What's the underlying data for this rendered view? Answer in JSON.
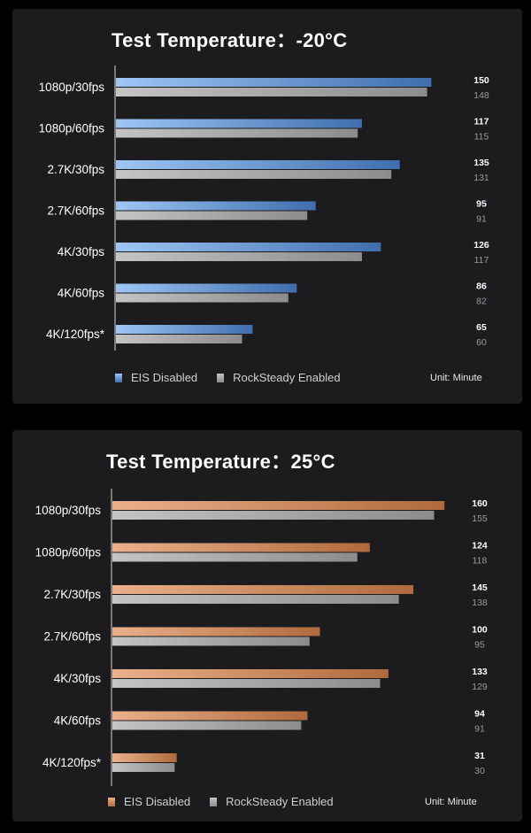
{
  "colors": {
    "background": "#000000",
    "panel": "#1c1c1e",
    "blue_light": "#9ec6f5",
    "blue_dark": "#3f6eae",
    "orange_light": "#eab08b",
    "orange_dark": "#b06a3c",
    "gray_light": "#c4c4c4",
    "gray_dark": "#8c8c8c"
  },
  "chart_data": [
    {
      "type": "bar",
      "orientation": "horizontal",
      "title": "Test Temperature：-20°C",
      "categories": [
        "1080p/30fps",
        "1080p/60fps",
        "2.7K/30fps",
        "2.7K/60fps",
        "4K/30fps",
        "4K/60fps",
        "4K/120fps*"
      ],
      "series": [
        {
          "name": "EIS Disabled",
          "values": [
            150,
            117,
            135,
            95,
            126,
            86,
            65
          ],
          "color": "#5b8fd3"
        },
        {
          "name": "RockSteady Enabled",
          "values": [
            148,
            115,
            131,
            91,
            117,
            82,
            60
          ],
          "color": "#a8a8a8"
        }
      ],
      "unit_label": "Unit: Minute",
      "legend": "bottom",
      "xlim": [
        0,
        165
      ],
      "grid": false
    },
    {
      "type": "bar",
      "orientation": "horizontal",
      "title": "Test Temperature：25°C",
      "categories": [
        "1080p/30fps",
        "1080p/60fps",
        "2.7K/30fps",
        "2.7K/60fps",
        "4K/30fps",
        "4K/60fps",
        "4K/120fps*"
      ],
      "series": [
        {
          "name": "EIS Disabled",
          "values": [
            160,
            124,
            145,
            100,
            133,
            94,
            31
          ],
          "color": "#d08d5f"
        },
        {
          "name": "RockSteady Enabled",
          "values": [
            155,
            118,
            138,
            95,
            129,
            91,
            30
          ],
          "color": "#a8a8a8"
        }
      ],
      "unit_label": "Unit: Minute",
      "legend": "bottom",
      "xlim": [
        0,
        168
      ],
      "grid": false
    }
  ]
}
